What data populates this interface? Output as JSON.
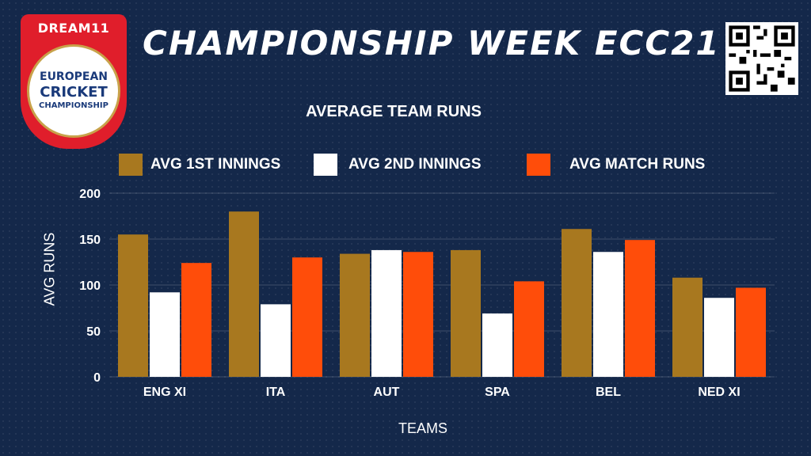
{
  "logo": {
    "brand": "DREAM11",
    "line1": "EUROPEAN",
    "line2": "CRICKET",
    "line3": "CHAMPIONSHIP"
  },
  "title": "CHAMPIONSHIP WEEK ECC21",
  "colors": {
    "background": "#14284a",
    "avg_1st_innings": "#a8781f",
    "avg_2nd_innings": "#ffffff",
    "avg_match_runs": "#ff4d0a"
  },
  "qr_icon": "qr-code-icon",
  "chart_data": {
    "type": "bar",
    "title": "AVERAGE TEAM RUNS",
    "xlabel": "TEAMS",
    "ylabel": "AVG RUNS",
    "ylim": [
      0,
      200
    ],
    "yticks": [
      0,
      50,
      100,
      150,
      200
    ],
    "grid": true,
    "legend": "top",
    "categories": [
      "ENG XI",
      "ITA",
      "AUT",
      "SPA",
      "BEL",
      "NED XI"
    ],
    "series": [
      {
        "name": "AVG 1ST INNINGS",
        "color": "#a8781f",
        "values": [
          155,
          180,
          134,
          138,
          161,
          108
        ]
      },
      {
        "name": "AVG 2ND INNINGS",
        "color": "#ffffff",
        "values": [
          92,
          79,
          138,
          69,
          136,
          86
        ]
      },
      {
        "name": "AVG MATCH RUNS",
        "color": "#ff4d0a",
        "values": [
          124,
          130,
          136,
          104,
          149,
          97
        ]
      }
    ]
  }
}
